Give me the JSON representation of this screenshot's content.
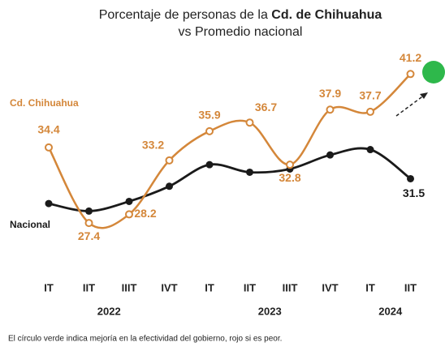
{
  "chart_data": {
    "type": "line",
    "title": {
      "start": "Porcentaje de personas de la ",
      "bold": "Cd. de Chihuahua",
      "line2": "vs Promedio nacional"
    },
    "categories": [
      "IT",
      "IIT",
      "IIIT",
      "IVT",
      "IT",
      "IIT",
      "IIIT",
      "IVT",
      "IT",
      "IIT"
    ],
    "years": [
      "2022",
      "2023",
      "2024"
    ],
    "ylim": [
      22,
      44
    ],
    "series": [
      {
        "name": "Cd. Chihuahua",
        "color": "#d4873a",
        "values": [
          34.4,
          27.4,
          28.2,
          33.2,
          35.9,
          36.7,
          32.8,
          37.9,
          37.7,
          41.2
        ]
      },
      {
        "name": "Nacional",
        "color": "#1a1a1a",
        "values": [
          29.2,
          28.5,
          29.4,
          30.8,
          32.8,
          32.1,
          32.4,
          33.7,
          34.2,
          31.5
        ]
      }
    ],
    "footnote": "El círculo verde indica mejoría en la efectividad del gobierno, rojo si es peor."
  }
}
